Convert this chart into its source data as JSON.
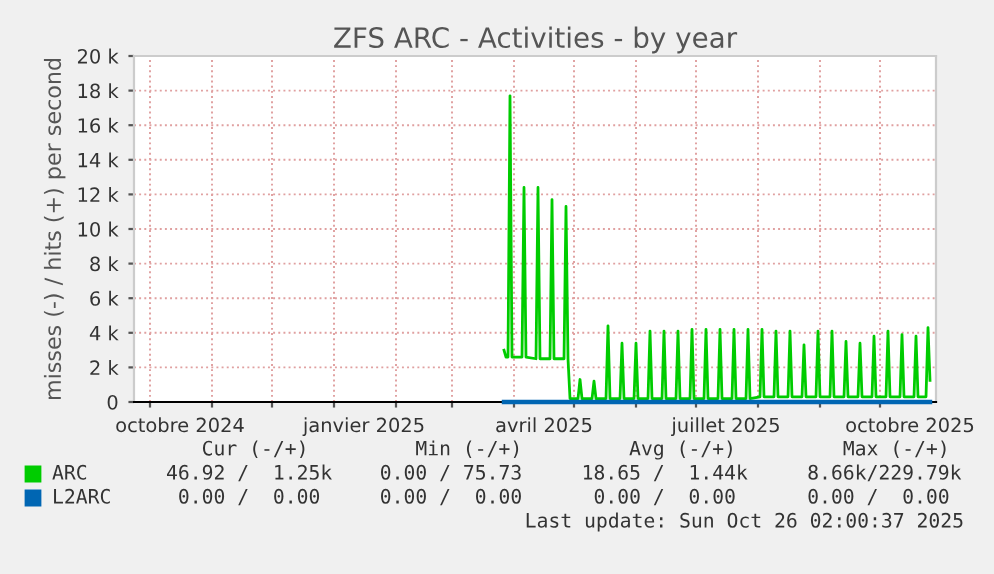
{
  "chart_data": {
    "type": "line",
    "title": "ZFS ARC - Activities - by year",
    "ylabel": "misses (-) / hits (+) per second",
    "xlim": [
      "2024-09-23",
      "2025-10-29"
    ],
    "xticks": [
      {
        "value": "2024-10-01",
        "label": null
      },
      {
        "value": "2024-10-16",
        "label": "octobre 2024"
      },
      {
        "value": "2024-11-01",
        "label": null
      },
      {
        "value": "2024-12-01",
        "label": null
      },
      {
        "value": "2025-01-01",
        "label": null
      },
      {
        "value": "2025-01-16",
        "label": "janvier 2025"
      },
      {
        "value": "2025-02-01",
        "label": null
      },
      {
        "value": "2025-03-01",
        "label": null
      },
      {
        "value": "2025-04-01",
        "label": null
      },
      {
        "value": "2025-04-16",
        "label": "avril 2025"
      },
      {
        "value": "2025-05-01",
        "label": null
      },
      {
        "value": "2025-06-01",
        "label": null
      },
      {
        "value": "2025-07-01",
        "label": null
      },
      {
        "value": "2025-07-16",
        "label": "juillet 2025"
      },
      {
        "value": "2025-08-01",
        "label": null
      },
      {
        "value": "2025-09-01",
        "label": null
      },
      {
        "value": "2025-10-01",
        "label": null
      },
      {
        "value": "2025-10-16",
        "label": "octobre 2025"
      }
    ],
    "ylim": [
      0,
      20000
    ],
    "yticks": [
      0,
      {
        "value": 2000,
        "label": "2 k"
      },
      {
        "value": 4000,
        "label": "4 k"
      },
      {
        "value": 6000,
        "label": "6 k"
      },
      {
        "value": 8000,
        "label": "8 k"
      },
      {
        "value": 10000,
        "label": "10 k"
      },
      {
        "value": 12000,
        "label": "12 k"
      },
      {
        "value": 14000,
        "label": "14 k"
      },
      {
        "value": 16000,
        "label": "16 k"
      },
      {
        "value": 18000,
        "label": "18 k"
      },
      {
        "value": 20000,
        "label": "20 k"
      }
    ],
    "grid": true,
    "legend": "bottom",
    "marker": "none",
    "line_style": "solid",
    "series": [
      {
        "name": "ARC",
        "color": "#00cc00",
        "x": [
          "2025-03-27",
          "2025-03-28",
          "2025-03-29",
          "2025-03-30",
          "2025-03-31",
          "2025-04-05",
          "2025-04-06",
          "2025-04-07",
          "2025-04-12",
          "2025-04-13",
          "2025-04-14",
          "2025-04-19",
          "2025-04-20",
          "2025-04-21",
          "2025-04-26",
          "2025-04-27",
          "2025-04-28",
          "2025-04-29",
          "2025-05-03",
          "2025-05-04",
          "2025-05-05",
          "2025-05-10",
          "2025-05-11",
          "2025-05-12",
          "2025-05-17",
          "2025-05-18",
          "2025-05-19",
          "2025-05-24",
          "2025-05-25",
          "2025-05-26",
          "2025-05-31",
          "2025-06-01",
          "2025-06-02",
          "2025-06-07",
          "2025-06-08",
          "2025-06-09",
          "2025-06-14",
          "2025-06-15",
          "2025-06-16",
          "2025-06-21",
          "2025-06-22",
          "2025-06-23",
          "2025-06-28",
          "2025-06-29",
          "2025-06-30",
          "2025-07-05",
          "2025-07-06",
          "2025-07-07",
          "2025-07-12",
          "2025-07-13",
          "2025-07-14",
          "2025-07-19",
          "2025-07-20",
          "2025-07-21",
          "2025-07-26",
          "2025-07-27",
          "2025-07-28",
          "2025-08-02",
          "2025-08-03",
          "2025-08-04",
          "2025-08-09",
          "2025-08-10",
          "2025-08-11",
          "2025-08-16",
          "2025-08-17",
          "2025-08-18",
          "2025-08-23",
          "2025-08-24",
          "2025-08-25",
          "2025-08-30",
          "2025-08-31",
          "2025-09-01",
          "2025-09-06",
          "2025-09-07",
          "2025-09-08",
          "2025-09-13",
          "2025-09-14",
          "2025-09-15",
          "2025-09-20",
          "2025-09-21",
          "2025-09-22",
          "2025-09-27",
          "2025-09-28",
          "2025-09-29",
          "2025-10-04",
          "2025-10-05",
          "2025-10-06",
          "2025-10-11",
          "2025-10-12",
          "2025-10-13",
          "2025-10-18",
          "2025-10-19",
          "2025-10-20",
          "2025-10-24",
          "2025-10-25",
          "2025-10-26"
        ],
        "values": [
          3000,
          2600,
          2600,
          17700,
          2600,
          2600,
          12400,
          2600,
          2500,
          12400,
          2500,
          2500,
          11700,
          2500,
          2500,
          11300,
          2500,
          200,
          200,
          1300,
          200,
          200,
          1200,
          200,
          200,
          4400,
          200,
          200,
          3400,
          200,
          200,
          3400,
          200,
          200,
          4100,
          200,
          200,
          4100,
          200,
          200,
          4100,
          200,
          200,
          4200,
          200,
          200,
          4200,
          200,
          200,
          4200,
          200,
          200,
          4200,
          200,
          200,
          4200,
          200,
          300,
          4200,
          300,
          300,
          4100,
          300,
          300,
          4100,
          300,
          300,
          3300,
          300,
          300,
          4100,
          300,
          300,
          4100,
          300,
          300,
          3500,
          300,
          300,
          3400,
          300,
          300,
          3800,
          300,
          300,
          4100,
          300,
          300,
          3900,
          300,
          300,
          3800,
          300,
          300,
          4300,
          1250
        ]
      },
      {
        "name": "L2ARC",
        "color": "#0066b3",
        "x": [
          "2025-03-27",
          "2025-10-26"
        ],
        "values": [
          0,
          0
        ]
      }
    ],
    "annotations": [
      "   Cur (-/+)         Min (-/+)         Avg (-/+)         Max (-/+)",
      "46.92 /  1.25k    0.00 / 75.73     18.65 /  1.44k     8.66k/229.79k",
      " 0.00 /  0.00     0.00 /  0.00      0.00 /  0.00      0.00 /  0.00",
      "Last update: Sun Oct 26 02:00:37 2025"
    ]
  }
}
